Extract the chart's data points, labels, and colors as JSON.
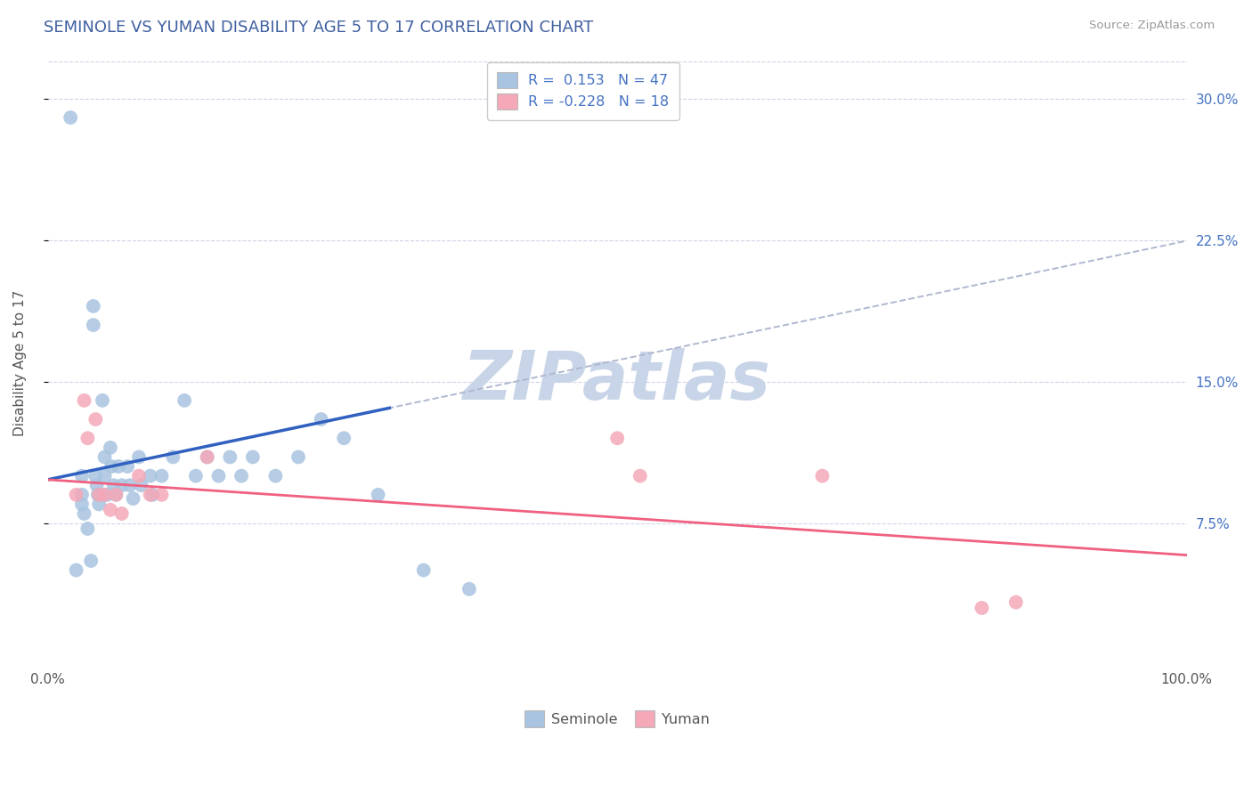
{
  "title": "SEMINOLE VS YUMAN DISABILITY AGE 5 TO 17 CORRELATION CHART",
  "source_text": "Source: ZipAtlas.com",
  "ylabel": "Disability Age 5 to 17",
  "xlim": [
    0.0,
    1.0
  ],
  "ylim": [
    0.0,
    0.32
  ],
  "xtick_labels": [
    "0.0%",
    "100.0%"
  ],
  "ytick_labels": [
    "7.5%",
    "15.0%",
    "22.5%",
    "30.0%"
  ],
  "ytick_positions": [
    0.075,
    0.15,
    0.225,
    0.3
  ],
  "seminole_R": 0.153,
  "seminole_N": 47,
  "yuman_R": -0.228,
  "yuman_N": 18,
  "seminole_color": "#a8c4e0",
  "yuman_color": "#f4a8b8",
  "seminole_line_color": "#3060c0",
  "yuman_line_color": "#f06080",
  "dashed_line_color": "#b0b8d0",
  "background_color": "#ffffff",
  "grid_color": "#d0d4e4",
  "seminole_x": [
    0.02,
    0.025,
    0.03,
    0.03,
    0.03,
    0.032,
    0.035,
    0.038,
    0.04,
    0.04,
    0.042,
    0.043,
    0.044,
    0.045,
    0.048,
    0.05,
    0.05,
    0.052,
    0.055,
    0.056,
    0.058,
    0.06,
    0.062,
    0.065,
    0.07,
    0.072,
    0.075,
    0.08,
    0.082,
    0.09,
    0.092,
    0.1,
    0.11,
    0.12,
    0.13,
    0.14,
    0.15,
    0.16,
    0.17,
    0.18,
    0.2,
    0.22,
    0.24,
    0.26,
    0.29,
    0.33,
    0.37
  ],
  "seminole_y": [
    0.29,
    0.05,
    0.1,
    0.09,
    0.085,
    0.08,
    0.072,
    0.055,
    0.19,
    0.18,
    0.1,
    0.095,
    0.09,
    0.085,
    0.14,
    0.11,
    0.1,
    0.09,
    0.115,
    0.105,
    0.095,
    0.09,
    0.105,
    0.095,
    0.105,
    0.095,
    0.088,
    0.11,
    0.095,
    0.1,
    0.09,
    0.1,
    0.11,
    0.14,
    0.1,
    0.11,
    0.1,
    0.11,
    0.1,
    0.11,
    0.1,
    0.11,
    0.13,
    0.12,
    0.09,
    0.05,
    0.04
  ],
  "yuman_x": [
    0.025,
    0.032,
    0.035,
    0.042,
    0.045,
    0.05,
    0.055,
    0.06,
    0.065,
    0.08,
    0.09,
    0.1,
    0.14,
    0.5,
    0.52,
    0.68,
    0.82,
    0.85
  ],
  "yuman_y": [
    0.09,
    0.14,
    0.12,
    0.13,
    0.09,
    0.09,
    0.082,
    0.09,
    0.08,
    0.1,
    0.09,
    0.09,
    0.11,
    0.12,
    0.1,
    0.1,
    0.03,
    0.033
  ],
  "seminole_line_x0": 0.0,
  "seminole_line_x1": 0.3,
  "seminole_line_y0": 0.098,
  "seminole_line_y1": 0.136,
  "dash_line_x0": 0.18,
  "dash_line_x1": 1.0,
  "yuman_line_x0": 0.0,
  "yuman_line_x1": 1.0,
  "yuman_line_y0": 0.098,
  "yuman_line_y1": 0.058,
  "watermark_text": "ZIPatlas",
  "watermark_color": "#c8d4e8",
  "watermark_fontsize": 55
}
